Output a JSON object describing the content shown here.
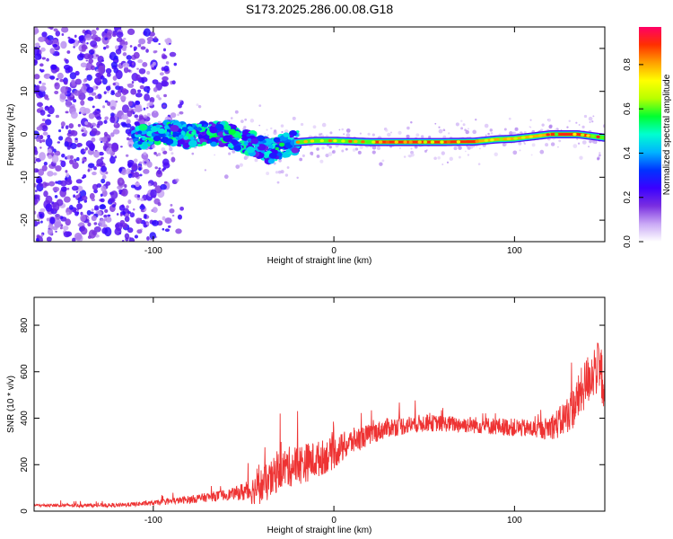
{
  "title": "S173.2025.286.00.08.G18",
  "chart_data": [
    {
      "type": "heatmap",
      "xlabel": "Height of straight line (km)",
      "ylabel": "Frequency (Hz)",
      "xlim": [
        -166,
        150
      ],
      "ylim": [
        -25,
        25
      ],
      "x_ticks": [
        -100,
        0,
        100
      ],
      "y_ticks": [
        -20,
        -10,
        0,
        10,
        20
      ],
      "colorbar": {
        "label": "Normalized spectral amplitude",
        "range": [
          0,
          0.97
        ],
        "ticks": [
          0.0,
          0.2,
          0.4,
          0.6,
          0.8
        ],
        "colors": [
          "#ffffff",
          "#c9a8f5",
          "#7a2fe0",
          "#3a00ff",
          "#0033ff",
          "#00b4ff",
          "#00ffd0",
          "#00ff30",
          "#b8ff00",
          "#ffff00",
          "#ffa000",
          "#ff3000",
          "#ff0066"
        ]
      },
      "ridge": [
        {
          "x": -110,
          "f": -1.0
        },
        {
          "x": -100,
          "f": 0.0
        },
        {
          "x": -90,
          "f": 0.5
        },
        {
          "x": -80,
          "f": -0.5
        },
        {
          "x": -70,
          "f": 0.2
        },
        {
          "x": -60,
          "f": 0.0
        },
        {
          "x": -50,
          "f": -1.5
        },
        {
          "x": -40,
          "f": -3.0
        },
        {
          "x": -35,
          "f": -4.0
        },
        {
          "x": -30,
          "f": -3.0
        },
        {
          "x": -25,
          "f": -2.0
        },
        {
          "x": -10,
          "f": -1.5
        },
        {
          "x": 0,
          "f": -1.5
        },
        {
          "x": 20,
          "f": -1.8
        },
        {
          "x": 40,
          "f": -1.8
        },
        {
          "x": 60,
          "f": -1.8
        },
        {
          "x": 78,
          "f": -1.7
        },
        {
          "x": 90,
          "f": -1.2
        },
        {
          "x": 100,
          "f": -1.0
        },
        {
          "x": 110,
          "f": -0.5
        },
        {
          "x": 120,
          "f": 0.0
        },
        {
          "x": 135,
          "f": 0.0
        },
        {
          "x": 150,
          "f": -0.8
        }
      ]
    },
    {
      "type": "line",
      "xlabel": "Height of straight line (km)",
      "ylabel": "SNR (10 * v/v)",
      "xlim": [
        -166,
        150
      ],
      "ylim": [
        0,
        920
      ],
      "x_ticks": [
        -100,
        0,
        100
      ],
      "y_ticks": [
        0,
        200,
        400,
        600,
        800
      ],
      "color": "#ee3333",
      "trend": [
        {
          "x": -166,
          "y": 25
        },
        {
          "x": -120,
          "y": 25
        },
        {
          "x": -100,
          "y": 35
        },
        {
          "x": -80,
          "y": 50
        },
        {
          "x": -60,
          "y": 70
        },
        {
          "x": -45,
          "y": 90
        },
        {
          "x": -35,
          "y": 130
        },
        {
          "x": -30,
          "y": 180
        },
        {
          "x": -20,
          "y": 200
        },
        {
          "x": -10,
          "y": 220
        },
        {
          "x": 0,
          "y": 250
        },
        {
          "x": 10,
          "y": 300
        },
        {
          "x": 20,
          "y": 330
        },
        {
          "x": 30,
          "y": 360
        },
        {
          "x": 50,
          "y": 380
        },
        {
          "x": 80,
          "y": 370
        },
        {
          "x": 100,
          "y": 360
        },
        {
          "x": 115,
          "y": 350
        },
        {
          "x": 125,
          "y": 380
        },
        {
          "x": 133,
          "y": 450
        },
        {
          "x": 140,
          "y": 560
        },
        {
          "x": 145,
          "y": 620
        },
        {
          "x": 150,
          "y": 560
        }
      ],
      "noise": [
        {
          "x": -166,
          "a": 6
        },
        {
          "x": -100,
          "a": 10
        },
        {
          "x": -55,
          "a": 25
        },
        {
          "x": -40,
          "a": 80
        },
        {
          "x": -20,
          "a": 90
        },
        {
          "x": 0,
          "a": 70
        },
        {
          "x": 20,
          "a": 45
        },
        {
          "x": 60,
          "a": 35
        },
        {
          "x": 115,
          "a": 40
        },
        {
          "x": 135,
          "a": 100
        },
        {
          "x": 150,
          "a": 130
        }
      ]
    }
  ]
}
